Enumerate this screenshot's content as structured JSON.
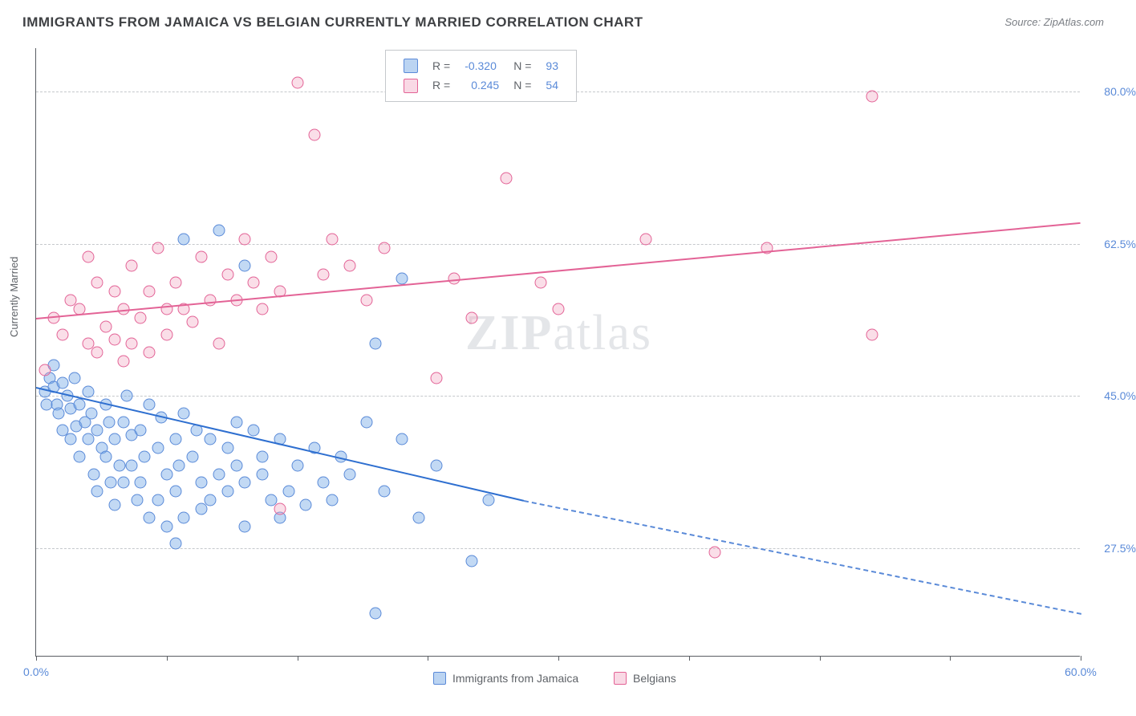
{
  "title": "IMMIGRANTS FROM JAMAICA VS BELGIAN CURRENTLY MARRIED CORRELATION CHART",
  "source": "Source: ZipAtlas.com",
  "watermark": {
    "bold": "ZIP",
    "light": "atlas"
  },
  "yaxis_title": "Currently Married",
  "chart": {
    "type": "scatter",
    "background_color": "#ffffff",
    "grid_color": "#c5c8cc",
    "axis_color": "#5a5e63",
    "xlim": [
      0,
      60
    ],
    "ylim": [
      15,
      85
    ],
    "x_ticks": [
      0,
      7.5,
      15,
      22.5,
      30,
      37.5,
      45,
      52.5,
      60
    ],
    "x_tick_labels": {
      "0": "0.0%",
      "60": "60.0%"
    },
    "y_grid": [
      27.5,
      45.0,
      62.5,
      80.0
    ],
    "y_tick_labels": [
      "27.5%",
      "45.0%",
      "62.5%",
      "80.0%"
    ],
    "marker_size": 15,
    "series": [
      {
        "name": "Immigrants from Jamaica",
        "color_fill": "rgba(120,170,230,0.45)",
        "color_stroke": "#5a8ad8",
        "trend_color": "#2e6fd0",
        "R": "-0.320",
        "N": "93",
        "trend": {
          "x1": 0,
          "y1": 46,
          "x2_solid": 28,
          "y2_solid": 33,
          "x2_dash": 60,
          "y2_dash": 20
        },
        "points": [
          [
            0.5,
            45.5
          ],
          [
            0.8,
            47
          ],
          [
            0.6,
            44
          ],
          [
            1,
            46
          ],
          [
            1,
            48.5
          ],
          [
            1.2,
            44
          ],
          [
            1.5,
            46.5
          ],
          [
            1.3,
            43
          ],
          [
            1.8,
            45
          ],
          [
            1.5,
            41
          ],
          [
            2,
            43.5
          ],
          [
            2.2,
            47
          ],
          [
            2,
            40
          ],
          [
            2.5,
            44
          ],
          [
            2.3,
            41.5
          ],
          [
            2.8,
            42
          ],
          [
            2.5,
            38
          ],
          [
            3,
            45.5
          ],
          [
            3.2,
            43
          ],
          [
            3,
            40
          ],
          [
            3.5,
            41
          ],
          [
            3.3,
            36
          ],
          [
            3.8,
            39
          ],
          [
            3.5,
            34
          ],
          [
            4,
            44
          ],
          [
            4.2,
            42
          ],
          [
            4,
            38
          ],
          [
            4.5,
            40
          ],
          [
            4.3,
            35
          ],
          [
            4.8,
            37
          ],
          [
            4.5,
            32.5
          ],
          [
            5,
            42
          ],
          [
            5.2,
            45
          ],
          [
            5.5,
            40.5
          ],
          [
            5,
            35
          ],
          [
            5.5,
            37
          ],
          [
            5.8,
            33
          ],
          [
            6,
            41
          ],
          [
            6.2,
            38
          ],
          [
            6.5,
            44
          ],
          [
            6,
            35
          ],
          [
            6.5,
            31
          ],
          [
            7,
            39
          ],
          [
            7.2,
            42.5
          ],
          [
            7.5,
            36
          ],
          [
            7,
            33
          ],
          [
            7.5,
            30
          ],
          [
            8,
            40
          ],
          [
            8.2,
            37
          ],
          [
            8.5,
            43
          ],
          [
            8,
            34
          ],
          [
            8.5,
            31
          ],
          [
            8,
            28
          ],
          [
            9,
            38
          ],
          [
            9.5,
            35
          ],
          [
            9.2,
            41
          ],
          [
            9.5,
            32
          ],
          [
            10,
            40
          ],
          [
            10.5,
            36
          ],
          [
            10,
            33
          ],
          [
            11,
            39
          ],
          [
            11.5,
            42
          ],
          [
            11,
            34
          ],
          [
            11.5,
            37
          ],
          [
            12,
            35
          ],
          [
            12.5,
            41
          ],
          [
            12,
            30
          ],
          [
            13,
            38
          ],
          [
            13.5,
            33
          ],
          [
            13,
            36
          ],
          [
            14,
            40
          ],
          [
            14.5,
            34
          ],
          [
            14,
            31
          ],
          [
            15,
            37
          ],
          [
            15.5,
            32.5
          ],
          [
            16,
            39
          ],
          [
            16.5,
            35
          ],
          [
            17,
            33
          ],
          [
            17.5,
            38
          ],
          [
            18,
            36
          ],
          [
            19,
            42
          ],
          [
            19.5,
            20
          ],
          [
            20,
            34
          ],
          [
            21,
            40
          ],
          [
            22,
            31
          ],
          [
            23,
            37
          ],
          [
            25,
            26
          ],
          [
            26,
            33
          ],
          [
            8.5,
            63
          ],
          [
            10.5,
            64
          ],
          [
            12,
            60
          ],
          [
            21,
            58.5
          ],
          [
            19.5,
            51
          ]
        ]
      },
      {
        "name": "Belgians",
        "color_fill": "rgba(240,160,190,0.35)",
        "color_stroke": "#e36396",
        "trend_color": "#e36396",
        "R": "0.245",
        "N": "54",
        "trend": {
          "x1": 0,
          "y1": 54,
          "x2_solid": 60,
          "y2_solid": 65
        },
        "points": [
          [
            0.5,
            48
          ],
          [
            1,
            54
          ],
          [
            1.5,
            52
          ],
          [
            2,
            56
          ],
          [
            2.5,
            55
          ],
          [
            3,
            51
          ],
          [
            3,
            61
          ],
          [
            3.5,
            58
          ],
          [
            3.5,
            50
          ],
          [
            4,
            53
          ],
          [
            4.5,
            57
          ],
          [
            4.5,
            51.5
          ],
          [
            5,
            55
          ],
          [
            5,
            49
          ],
          [
            5.5,
            60
          ],
          [
            5.5,
            51
          ],
          [
            6,
            54
          ],
          [
            6.5,
            57
          ],
          [
            6.5,
            50
          ],
          [
            7,
            62
          ],
          [
            7.5,
            55
          ],
          [
            7.5,
            52
          ],
          [
            8,
            58
          ],
          [
            8.5,
            55
          ],
          [
            9,
            53.5
          ],
          [
            9.5,
            61
          ],
          [
            10,
            56
          ],
          [
            10.5,
            51
          ],
          [
            11,
            59
          ],
          [
            11.5,
            56
          ],
          [
            12,
            63
          ],
          [
            12.5,
            58
          ],
          [
            13,
            55
          ],
          [
            13.5,
            61
          ],
          [
            14,
            57
          ],
          [
            15,
            81
          ],
          [
            16,
            75
          ],
          [
            16.5,
            59
          ],
          [
            17,
            63
          ],
          [
            18,
            60
          ],
          [
            19,
            56
          ],
          [
            20,
            62
          ],
          [
            23,
            47
          ],
          [
            24,
            58.5
          ],
          [
            25,
            54
          ],
          [
            27,
            70
          ],
          [
            29,
            58
          ],
          [
            30,
            55
          ],
          [
            35,
            63
          ],
          [
            39,
            27
          ],
          [
            42,
            62
          ],
          [
            48,
            79.5
          ],
          [
            48,
            52
          ],
          [
            14,
            32
          ]
        ]
      }
    ]
  },
  "legend_bottom": [
    {
      "color": "blue",
      "label": "Immigrants from Jamaica"
    },
    {
      "color": "pink",
      "label": "Belgians"
    }
  ]
}
